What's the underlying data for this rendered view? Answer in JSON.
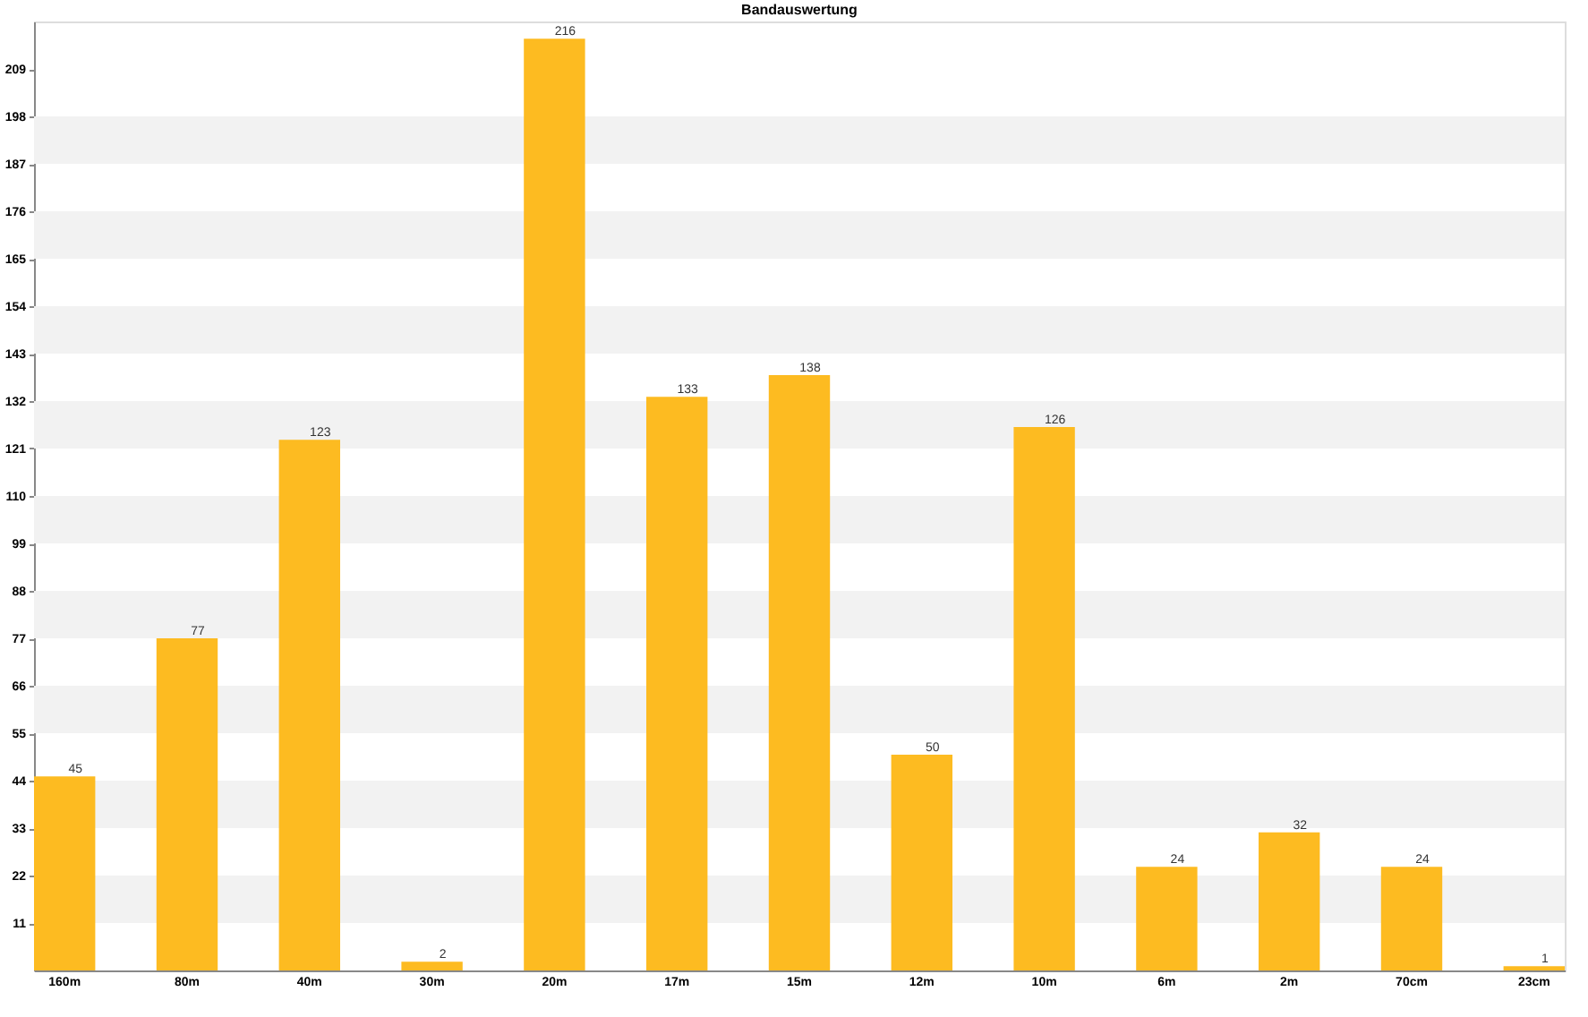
{
  "chart_data": {
    "type": "bar",
    "title": "Bandauswertung",
    "categories": [
      "160m",
      "80m",
      "40m",
      "30m",
      "20m",
      "17m",
      "15m",
      "12m",
      "10m",
      "6m",
      "2m",
      "70cm",
      "23cm"
    ],
    "values": [
      45,
      77,
      123,
      2,
      216,
      133,
      138,
      50,
      126,
      24,
      32,
      24,
      1
    ],
    "color": "#fdbb21",
    "ylim": [
      0,
      220
    ],
    "yticks": [
      11,
      22,
      33,
      44,
      55,
      66,
      77,
      88,
      99,
      110,
      121,
      132,
      143,
      154,
      165,
      176,
      187,
      198,
      209
    ],
    "bands": [
      {
        "axis": "y",
        "from": 11,
        "to": 22,
        "color": "#f2f2f2"
      },
      {
        "axis": "y",
        "from": 33,
        "to": 44,
        "color": "#f2f2f2"
      },
      {
        "axis": "y",
        "from": 55,
        "to": 66,
        "color": "#f2f2f2"
      },
      {
        "axis": "y",
        "from": 77,
        "to": 88,
        "color": "#f2f2f2"
      },
      {
        "axis": "y",
        "from": 99,
        "to": 110,
        "color": "#f2f2f2"
      },
      {
        "axis": "y",
        "from": 121,
        "to": 132,
        "color": "#f2f2f2"
      },
      {
        "axis": "y",
        "from": 143,
        "to": 154,
        "color": "#f2f2f2"
      },
      {
        "axis": "y",
        "from": 165,
        "to": 176,
        "color": "#f2f2f2"
      },
      {
        "axis": "y",
        "from": 187,
        "to": 198,
        "color": "#f2f2f2"
      }
    ],
    "data_labels": true
  }
}
